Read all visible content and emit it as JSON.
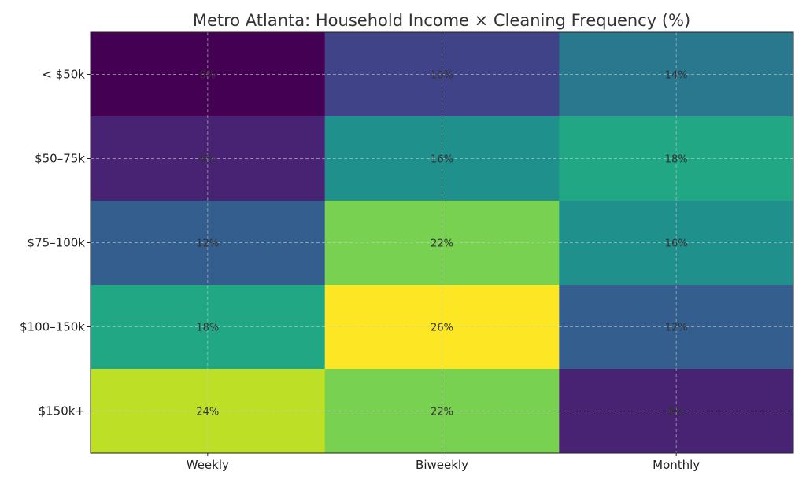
{
  "chart_data": {
    "type": "heatmap",
    "title": "Metro Atlanta: Household Income × Cleaning Frequency (%)",
    "xlabel": "",
    "ylabel": "",
    "x_categories": [
      "Weekly",
      "Biweekly",
      "Monthly"
    ],
    "y_categories": [
      "< $50k",
      "$50–75k",
      "$75–100k",
      "$100–150k",
      "$150k+"
    ],
    "values": [
      [
        6,
        10,
        14
      ],
      [
        8,
        16,
        18
      ],
      [
        12,
        22,
        16
      ],
      [
        18,
        26,
        12
      ],
      [
        24,
        22,
        8
      ]
    ],
    "value_suffix": "%",
    "colormap": "viridis",
    "color_range": [
      6,
      26
    ],
    "grid": true,
    "colorbar": false
  }
}
